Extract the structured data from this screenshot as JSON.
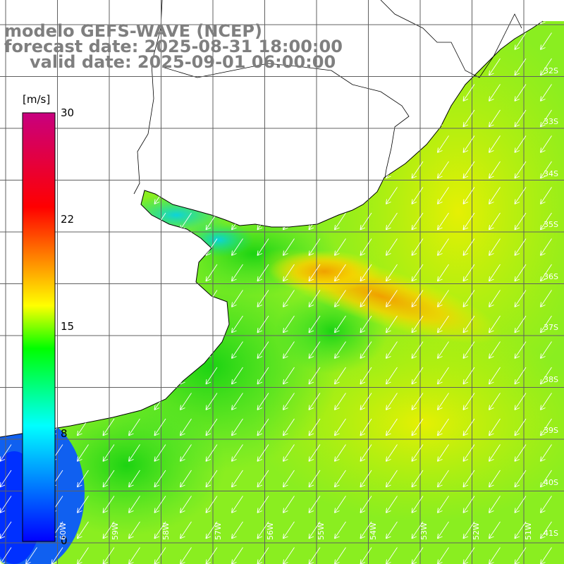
{
  "title": {
    "line1": "modelo GEFS-WAVE (NCEP)",
    "line2": "forecast date: 2025-08-31 18:00:00",
    "line3": "valid date: 2025-09-01 06:00:00"
  },
  "colorbar": {
    "unit": "[m/s]",
    "min": 0,
    "max": 30,
    "ticks": [
      "30",
      "22",
      "15",
      "8",
      "0"
    ],
    "colors": [
      "#0000ff",
      "#00ffff",
      "#00ff00",
      "#ffff00",
      "#ff0000",
      "#c8007f"
    ]
  },
  "grid": {
    "lat_labels": [
      "32S",
      "33S",
      "34S",
      "35S",
      "36S",
      "37S",
      "38S",
      "39S",
      "40S",
      "41S"
    ],
    "lon_labels": [
      "60W",
      "59W",
      "58W",
      "57W",
      "56W",
      "55W",
      "54W",
      "53W",
      "52W",
      "51W"
    ]
  },
  "map_data": {
    "variable": "wind speed",
    "wind_direction": "toward southwest",
    "max_core_speed": 20,
    "sea_background_speed": 13
  }
}
